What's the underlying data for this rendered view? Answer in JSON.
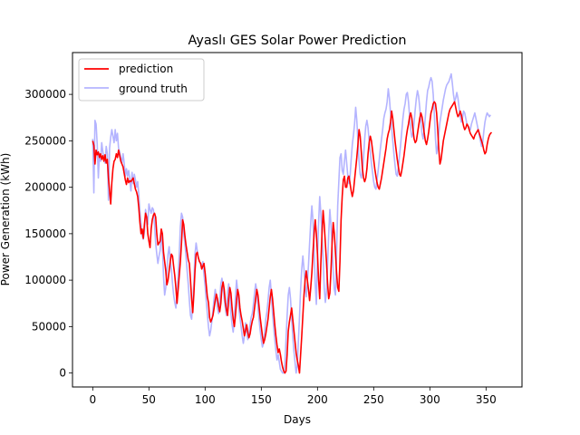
{
  "chart_data": {
    "type": "line",
    "title": "Ayaslı GES Solar Power Prediction",
    "xlabel": "Days",
    "ylabel": "Power Generation (kWh)",
    "xlim": [
      -18,
      382
    ],
    "ylim": [
      -15000,
      345000
    ],
    "x_ticks": [
      0,
      50,
      100,
      150,
      200,
      250,
      300,
      350
    ],
    "y_ticks": [
      0,
      50000,
      100000,
      150000,
      200000,
      250000,
      300000
    ],
    "legend_position": "upper-left",
    "series": [
      {
        "name": "prediction",
        "color": "#ff0000",
        "x_start": 0,
        "values": [
          250000,
          245000,
          225000,
          240000,
          235000,
          238000,
          232000,
          236000,
          230000,
          234000,
          228000,
          235000,
          226000,
          230000,
          210000,
          196000,
          182000,
          205000,
          220000,
          228000,
          230000,
          236000,
          232000,
          240000,
          234000,
          228000,
          225000,
          222000,
          215000,
          208000,
          203000,
          210000,
          205000,
          207000,
          206000,
          208000,
          210000,
          204000,
          198000,
          195000,
          190000,
          178000,
          162000,
          150000,
          155000,
          145000,
          160000,
          172000,
          168000,
          150000,
          142000,
          135000,
          155000,
          165000,
          170000,
          172000,
          168000,
          150000,
          138000,
          140000,
          142000,
          155000,
          150000,
          130000,
          120000,
          110000,
          95000,
          100000,
          110000,
          120000,
          128000,
          126000,
          115000,
          105000,
          92000,
          75000,
          90000,
          105000,
          120000,
          140000,
          165000,
          160000,
          148000,
          138000,
          130000,
          122000,
          118000,
          100000,
          80000,
          65000,
          85000,
          110000,
          128000,
          130000,
          124000,
          120000,
          118000,
          112000,
          115000,
          118000,
          108000,
          95000,
          82000,
          76000,
          60000,
          55000,
          58000,
          62000,
          70000,
          78000,
          85000,
          80000,
          72000,
          66000,
          75000,
          92000,
          98000,
          90000,
          76000,
          68000,
          62000,
          80000,
          92000,
          86000,
          70000,
          58000,
          50000,
          62000,
          78000,
          90000,
          84000,
          70000,
          62000,
          56000,
          48000,
          40000,
          46000,
          52000,
          44000,
          38000,
          42000,
          50000,
          56000,
          60000,
          70000,
          80000,
          90000,
          84000,
          72000,
          60000,
          50000,
          40000,
          32000,
          36000,
          42000,
          50000,
          58000,
          70000,
          82000,
          90000,
          80000,
          66000,
          52000,
          40000,
          30000,
          22000,
          26000,
          20000,
          12000,
          6000,
          2000,
          0,
          2000,
          20000,
          45000,
          55000,
          62000,
          70000,
          58000,
          46000,
          34000,
          22000,
          14000,
          8000,
          0,
          20000,
          40000,
          62000,
          84000,
          100000,
          110000,
          100000,
          90000,
          78000,
          92000,
          108000,
          130000,
          150000,
          165000,
          150000,
          128000,
          100000,
          80000,
          118000,
          150000,
          175000,
          160000,
          140000,
          120000,
          96000,
          80000,
          86000,
          110000,
          140000,
          162000,
          150000,
          130000,
          108000,
          92000,
          88000,
          120000,
          165000,
          190000,
          208000,
          212000,
          200000,
          200000,
          210000,
          212000,
          204000,
          196000,
          190000,
          196000,
          208000,
          220000,
          232000,
          246000,
          262000,
          255000,
          238000,
          220000,
          210000,
          206000,
          210000,
          220000,
          236000,
          248000,
          255000,
          250000,
          240000,
          230000,
          220000,
          212000,
          205000,
          200000,
          198000,
          204000,
          210000,
          218000,
          226000,
          234000,
          242000,
          252000,
          258000,
          262000,
          270000,
          282000,
          274000,
          262000,
          250000,
          240000,
          230000,
          222000,
          214000,
          212000,
          218000,
          226000,
          234000,
          244000,
          254000,
          262000,
          268000,
          276000,
          280000,
          274000,
          262000,
          252000,
          248000,
          250000,
          258000,
          266000,
          274000,
          280000,
          276000,
          268000,
          258000,
          250000,
          246000,
          252000,
          260000,
          270000,
          280000,
          284000,
          290000,
          292000,
          290000,
          280000,
          262000,
          240000,
          225000,
          230000,
          240000,
          250000,
          256000,
          262000,
          268000,
          274000,
          280000,
          284000,
          286000,
          288000,
          290000,
          292000,
          286000,
          280000,
          276000,
          278000,
          282000,
          278000,
          272000,
          266000,
          262000,
          264000,
          268000,
          266000,
          262000,
          258000,
          256000,
          254000,
          252000,
          256000,
          258000,
          260000,
          262000,
          258000,
          254000,
          250000,
          246000,
          240000,
          236000,
          238000,
          246000,
          252000,
          256000,
          258000,
          259000
        ],
        "values_note_removed": true
      },
      {
        "name": "ground truth",
        "color": "#b4b4ff",
        "x_start": 0,
        "values": [
          252000,
          194000,
          272000,
          268000,
          246000,
          210000,
          236000,
          228000,
          248000,
          238000,
          232000,
          226000,
          244000,
          236000,
          186000,
          242000,
          254000,
          262000,
          255000,
          248000,
          262000,
          250000,
          258000,
          242000,
          238000,
          232000,
          226000,
          236000,
          226000,
          212000,
          220000,
          212000,
          218000,
          208000,
          196000,
          216000,
          204000,
          214000,
          208000,
          200000,
          206000,
          192000,
          174000,
          160000,
          148000,
          144000,
          152000,
          176000,
          168000,
          160000,
          182000,
          176000,
          172000,
          178000,
          176000,
          160000,
          140000,
          128000,
          118000,
          126000,
          132000,
          150000,
          136000,
          104000,
          84000,
          92000,
          110000,
          128000,
          136000,
          120000,
          112000,
          96000,
          84000,
          76000,
          70000,
          86000,
          104000,
          128000,
          158000,
          172000,
          168000,
          150000,
          140000,
          126000,
          110000,
          96000,
          78000,
          62000,
          58000,
          74000,
          98000,
          128000,
          140000,
          132000,
          124000,
          120000,
          118000,
          114000,
          120000,
          106000,
          94000,
          78000,
          64000,
          50000,
          40000,
          46000,
          56000,
          68000,
          80000,
          90000,
          82000,
          70000,
          64000,
          76000,
          96000,
          102000,
          92000,
          80000,
          70000,
          62000,
          86000,
          96000,
          84000,
          64000,
          52000,
          44000,
          58000,
          82000,
          100000,
          88000,
          70000,
          60000,
          50000,
          40000,
          32000,
          40000,
          54000,
          44000,
          36000,
          42000,
          52000,
          60000,
          64000,
          74000,
          86000,
          96000,
          88000,
          72000,
          58000,
          46000,
          36000,
          28000,
          32000,
          44000,
          58000,
          66000,
          78000,
          92000,
          100000,
          84000,
          64000,
          50000,
          36000,
          24000,
          14000,
          20000,
          12000,
          4000,
          2000,
          0,
          0,
          10000,
          36000,
          62000,
          84000,
          92000,
          80000,
          60000,
          40000,
          24000,
          12000,
          0,
          8000,
          34000,
          60000,
          90000,
          112000,
          126000,
          112000,
          96000,
          82000,
          98000,
          116000,
          140000,
          162000,
          180000,
          164000,
          132000,
          96000,
          74000,
          124000,
          162000,
          190000,
          172000,
          148000,
          124000,
          92000,
          76000,
          88000,
          116000,
          150000,
          176000,
          160000,
          136000,
          110000,
          90000,
          84000,
          128000,
          180000,
          206000,
          232000,
          236000,
          218000,
          214000,
          228000,
          240000,
          226000,
          212000,
          204000,
          212000,
          230000,
          246000,
          256000,
          268000,
          286000,
          272000,
          250000,
          228000,
          214000,
          210000,
          218000,
          232000,
          252000,
          266000,
          272000,
          264000,
          250000,
          238000,
          226000,
          216000,
          206000,
          200000,
          198000,
          208000,
          218000,
          230000,
          242000,
          252000,
          262000,
          274000,
          280000,
          284000,
          292000,
          306000,
          296000,
          280000,
          264000,
          250000,
          236000,
          224000,
          214000,
          212000,
          222000,
          234000,
          246000,
          260000,
          274000,
          284000,
          290000,
          300000,
          302000,
          292000,
          276000,
          262000,
          254000,
          258000,
          270000,
          284000,
          296000,
          304000,
          298000,
          286000,
          270000,
          258000,
          252000,
          262000,
          276000,
          292000,
          304000,
          308000,
          314000,
          318000,
          314000,
          300000,
          278000,
          252000,
          236000,
          244000,
          258000,
          270000,
          278000,
          286000,
          294000,
          300000,
          306000,
          310000,
          312000,
          314000,
          318000,
          322000,
          312000,
          300000,
          292000,
          296000,
          302000,
          296000,
          286000,
          276000,
          270000,
          274000,
          282000,
          280000,
          274000,
          268000,
          266000,
          264000,
          262000,
          268000,
          272000,
          276000,
          280000,
          274000,
          268000,
          262000,
          256000,
          250000,
          244000,
          248000,
          260000,
          270000,
          276000,
          280000,
          278000,
          276000,
          278000
        ]
      }
    ]
  }
}
